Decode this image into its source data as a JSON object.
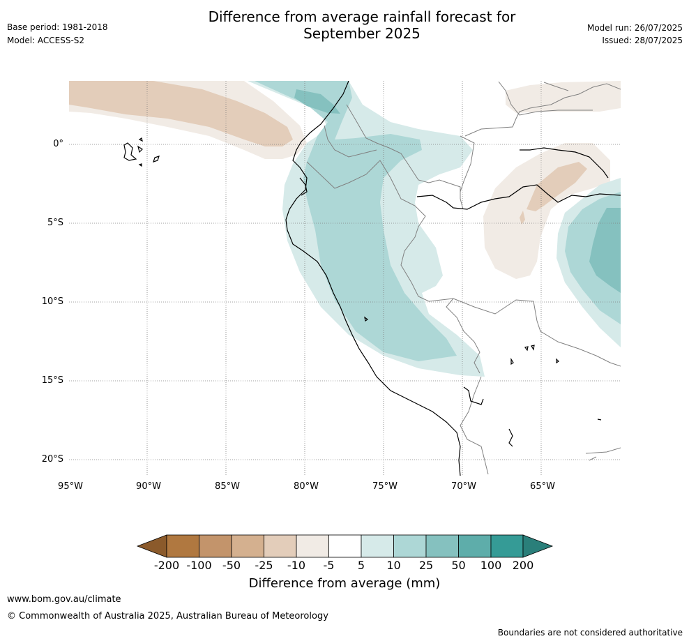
{
  "header": {
    "base_period": "Base period: 1981-2018",
    "model": "Model: ACCESS-S2",
    "title_line1": "Difference from average rainfall forecast for",
    "title_line2": "September 2025",
    "model_run": "Model run: 26/07/2025",
    "issued": "Issued: 28/07/2025"
  },
  "map": {
    "lon_ticks": [
      "95°W",
      "90°W",
      "85°W",
      "80°W",
      "75°W",
      "70°W",
      "65°W"
    ],
    "lat_ticks": [
      "0°",
      "5°S",
      "10°S",
      "15°S",
      "20°S"
    ],
    "ocean_color": "#ffffff",
    "coastline_color": "#000000",
    "border_color": "#808080",
    "gridline_color": "#808080"
  },
  "legend": {
    "ticks": [
      "-200",
      "-100",
      "-50",
      "-25",
      "-10",
      "-5",
      "5",
      "10",
      "25",
      "50",
      "100",
      "200"
    ],
    "label": "Difference from average (mm)",
    "colors": [
      "#8b5a2b",
      "#b07840",
      "#c3946b",
      "#d4b08f",
      "#e3cdba",
      "#f1ebe5",
      "#ffffff",
      "#d6eae9",
      "#add7d6",
      "#85c1bf",
      "#5eadaa",
      "#359b96",
      "#2a7f7a"
    ]
  },
  "footer": {
    "website": "www.bom.gov.au/climate",
    "copyright": "© Commonwealth of Australia 2025, Australian Bureau of Meteorology",
    "disclaimer": "Boundaries are not considered authoritative"
  }
}
